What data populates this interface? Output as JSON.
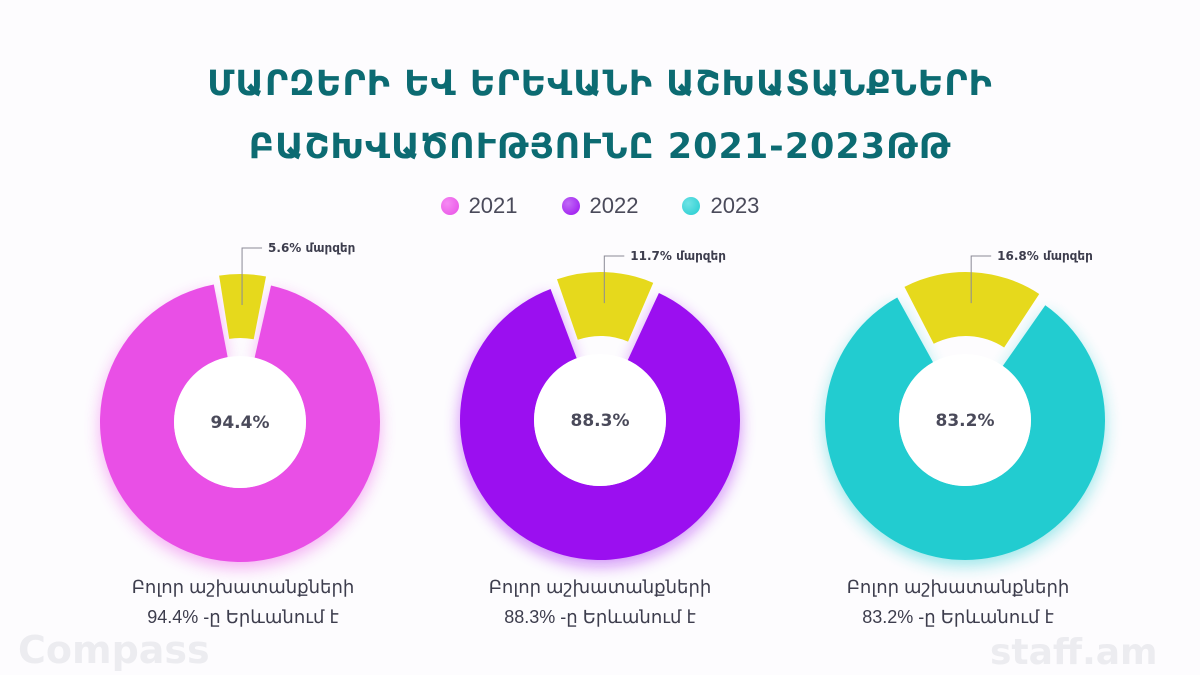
{
  "title_line1": "ՄԱՐԶԵՐԻ ԵՎ ԵՐԵՎԱՆԻ ԱՇԽԱՏԱՆՔՆԵՐԻ",
  "title_line2": "ԲԱՇԽՎԱԾՈՒԹՅՈՒՆԸ 2021-2023ԹԹ",
  "legend": [
    {
      "label": "2021",
      "color": "#e94fe6"
    },
    {
      "label": "2022",
      "color": "#9b0ff0"
    },
    {
      "label": "2023",
      "color": "#22ccd0"
    }
  ],
  "captions": [
    {
      "line1": "Բոլոր աշխատանքների",
      "line2": "94.4% -ը Երևանում է"
    },
    {
      "line1": "Բոլոր աշխատանքների",
      "line2": "88.3% -ը Երևանում է"
    },
    {
      "line1": "Բոլոր աշխատանքների",
      "line2": "83.2% -ը Երևանում է"
    }
  ],
  "logos": {
    "left": "Compass",
    "right": "staff.am"
  },
  "chart_data": [
    {
      "type": "pie",
      "series_year": "2021",
      "slices": [
        {
          "label": "Երևան",
          "value": 94.4,
          "display": "94.4%",
          "color": "#e94fe6"
        },
        {
          "label": "մարզեր",
          "value": 5.6,
          "display": "5.6% մարզեր",
          "color": "#e6d91c"
        }
      ]
    },
    {
      "type": "pie",
      "series_year": "2022",
      "slices": [
        {
          "label": "Երևան",
          "value": 88.3,
          "display": "88.3%",
          "color": "#9b0ff0"
        },
        {
          "label": "մարզեր",
          "value": 11.7,
          "display": "11.7% մարզեր",
          "color": "#e6d91c"
        }
      ]
    },
    {
      "type": "pie",
      "series_year": "2023",
      "slices": [
        {
          "label": "Երևան",
          "value": 83.2,
          "display": "83.2%",
          "color": "#22ccd0"
        },
        {
          "label": "մարզեր",
          "value": 16.8,
          "display": "16.8% մարզեր",
          "color": "#e6d91c"
        }
      ]
    }
  ]
}
